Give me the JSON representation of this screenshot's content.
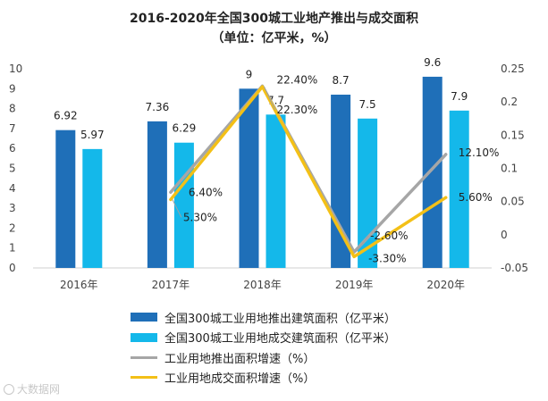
{
  "title_line1": "2016-2020年全国300城工业地产推出与成交面积",
  "title_line2": "（单位：亿平米，%）",
  "watermark": "大数据网",
  "chart_data": {
    "type": "bar",
    "categories": [
      "2016年",
      "2017年",
      "2018年",
      "2019年",
      "2020年"
    ],
    "ylim_left": [
      0,
      10
    ],
    "yticks_left": [
      "0",
      "1",
      "2",
      "3",
      "4",
      "5",
      "6",
      "7",
      "8",
      "9",
      "10"
    ],
    "ylim_right": [
      -0.05,
      0.25
    ],
    "yticks_right": [
      "-0.05",
      "0",
      "0.05",
      "0.1",
      "0.15",
      "0.2",
      "0.25"
    ],
    "series": [
      {
        "name": "全国300城工业用地推出建筑面积（亿平米）",
        "type": "bar",
        "axis": "left",
        "color": "#1F6FB8",
        "values": [
          6.92,
          7.36,
          9,
          8.7,
          9.6
        ],
        "labels": [
          "6.92",
          "7.36",
          "9",
          "8.7",
          "9.6"
        ]
      },
      {
        "name": "全国300城工业用地成交建筑面积（亿平米）",
        "type": "bar",
        "axis": "left",
        "color": "#14B8EA",
        "values": [
          5.97,
          6.29,
          7.7,
          7.5,
          7.9
        ],
        "labels": [
          "5.97",
          "6.29",
          "7.7",
          "7.5",
          "7.9"
        ]
      },
      {
        "name": "工业用地推出面积增速（%）",
        "type": "line",
        "axis": "right",
        "color": "#A6A6A6",
        "values": [
          null,
          0.064,
          0.224,
          -0.026,
          0.121
        ],
        "labels": [
          "",
          "6.40%",
          "22.40%",
          "-2.60%",
          "12.10%"
        ]
      },
      {
        "name": "工业用地成交面积增速（%）",
        "type": "line",
        "axis": "right",
        "color": "#F3C017",
        "values": [
          null,
          0.053,
          0.223,
          -0.033,
          0.056
        ],
        "labels": [
          "",
          "5.30%",
          "22.30%",
          "-3.30%",
          "5.60%"
        ]
      }
    ]
  }
}
